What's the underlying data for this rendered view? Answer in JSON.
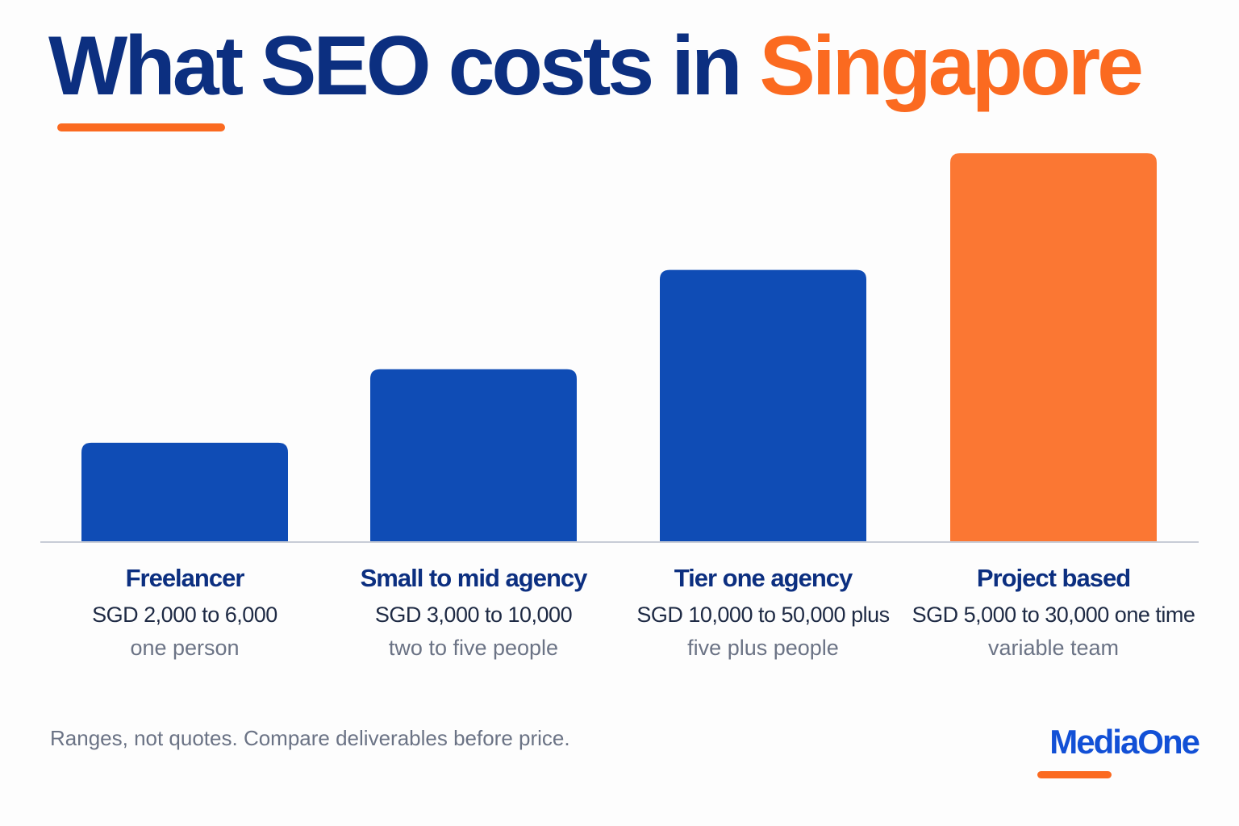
{
  "header": {
    "title_main": "What SEO costs in",
    "title_accent": "Singapore"
  },
  "footer": {
    "note": "Ranges, not quotes. Compare deliverables before price.",
    "logo_text": "MediaOne"
  },
  "colors": {
    "primary_blue": "#0f4cb5",
    "navy": "#0c2f80",
    "accent_orange": "#fb7733",
    "baseline": "#c8ccd6"
  },
  "chart_data": {
    "type": "bar",
    "title": "What SEO costs in Singapore",
    "categories": [
      "Freelancer",
      "Small to mid agency",
      "Tier one agency",
      "Project based"
    ],
    "values": [
      2.3,
      4.0,
      6.3,
      9.0
    ],
    "price_labels": [
      "SGD 2,000 to 6,000",
      "SGD 3,000 to 10,000",
      "SGD 10,000 to 50,000 plus",
      "SGD 5,000 to 30,000 one time"
    ],
    "team_labels": [
      "one person",
      "two to five people",
      "five plus people",
      "variable team"
    ],
    "highlight_index": 3,
    "ylim": [
      0,
      9
    ],
    "grid": false,
    "xlabel": "",
    "ylabel": ""
  }
}
